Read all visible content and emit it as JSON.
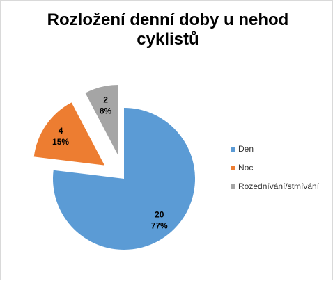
{
  "chart_data": {
    "type": "pie",
    "title_lines": [
      "Rozložení denní doby u nehod",
      "cyklistů"
    ],
    "slices": [
      {
        "label": "Den",
        "value": 20,
        "percent": "77%",
        "color": "#5b9bd5"
      },
      {
        "label": "Noc",
        "value": 4,
        "percent": "15%",
        "color": "#ed7d31"
      },
      {
        "label": "Rozednívání/stmívání",
        "value": 2,
        "percent": "8%",
        "color": "#a5a5a5"
      }
    ],
    "exploded": true,
    "legend_position": "right"
  }
}
